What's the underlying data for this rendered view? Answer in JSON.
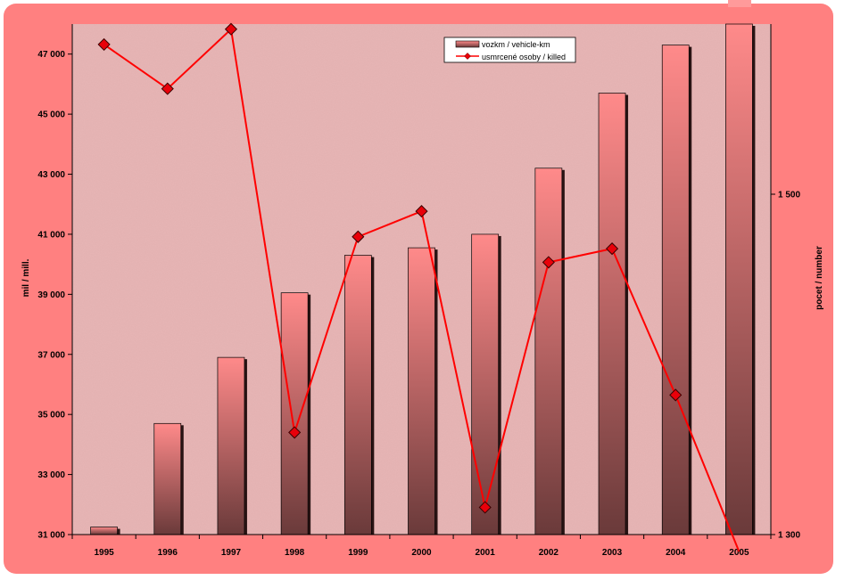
{
  "chart_data": {
    "type": "bar",
    "categories": [
      "1995",
      "1996",
      "1997",
      "1998",
      "1999",
      "2000",
      "2001",
      "2002",
      "2003",
      "2004",
      "2005"
    ],
    "series": [
      {
        "name": "vozkm / vehicle-km",
        "type": "bar",
        "axis": "left",
        "values": [
          31250,
          34700,
          36900,
          39050,
          40300,
          40550,
          41000,
          43200,
          45700,
          47300,
          48800
        ]
      },
      {
        "name": "usmrcené osoby / killed",
        "type": "line",
        "axis": "right",
        "values": [
          1588,
          1562,
          1597,
          1360,
          1475,
          1490,
          1316,
          1460,
          1468,
          1382,
          1290
        ]
      }
    ],
    "ylabel": "mil / mill.",
    "y2label": "pocet / number",
    "ylim": [
      31000,
      48000
    ],
    "y2lim": [
      1300,
      1600
    ],
    "yticks": [
      "31 000",
      "33 000",
      "35 000",
      "37 000",
      "39 000",
      "41 000",
      "43 000",
      "45 000",
      "47 000"
    ],
    "y2ticks": [
      "1 300",
      "1 500"
    ],
    "legend_position": "top-right",
    "grid": false,
    "colors": {
      "bar_light": "#ff8a8a",
      "bar_dark": "#6a3a3a",
      "line": "#ff0000",
      "marker": "#e8000a",
      "plot_bg": "#e8b5b5",
      "outer_bg": "#ff8080"
    }
  }
}
